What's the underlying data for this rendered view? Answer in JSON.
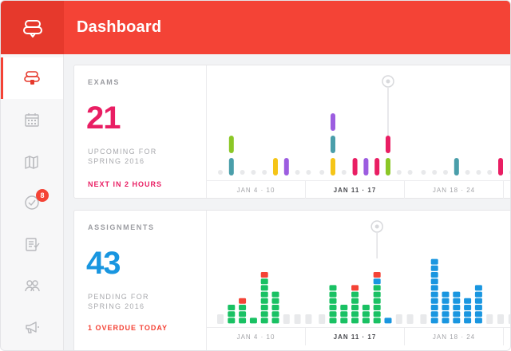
{
  "app": {
    "title": "Dashboard"
  },
  "sidebar": {
    "items": [
      {
        "name": "sidebar-item-home",
        "icon": "stacked-logo-icon",
        "active": true
      },
      {
        "name": "sidebar-item-calendar",
        "icon": "calendar-icon",
        "active": false
      },
      {
        "name": "sidebar-item-library",
        "icon": "books-icon",
        "active": false
      },
      {
        "name": "sidebar-item-tasks",
        "icon": "check-circle-icon",
        "active": false,
        "badge": "8"
      },
      {
        "name": "sidebar-item-assignments",
        "icon": "checklist-icon",
        "active": false
      },
      {
        "name": "sidebar-item-people",
        "icon": "people-icon",
        "active": false
      },
      {
        "name": "sidebar-item-announcements",
        "icon": "megaphone-icon",
        "active": false
      }
    ]
  },
  "exams": {
    "label": "EXAMS",
    "count": "21",
    "subtitle": "UPCOMING FOR SPRING 2016",
    "link": "NEXT IN 2 HOURS",
    "accent": "#e91e63"
  },
  "assignments": {
    "label": "ASSIGNMENTS",
    "count": "43",
    "subtitle": "PENDING FOR SPRING 2016",
    "link": "1 OVERDUE TODAY",
    "accent": "#1996e0",
    "link_color": "#f44336"
  },
  "weeks": [
    "JAN 4 · 10",
    "JAN 11 · 17",
    "JAN 18 · 24"
  ],
  "current_week_index": 1,
  "colors": {
    "brand": "#f44336",
    "teal": "#4a9eaa",
    "lime": "#8bc726",
    "yellow": "#f5c518",
    "purple": "#9c5de0",
    "pink": "#e91e63",
    "green": "#19c163",
    "red": "#f44336",
    "blue": "#1996e0",
    "empty": "#e8e9eb"
  },
  "exam_chart": {
    "segments_per_day": [
      [],
      [
        "teal",
        "lime"
      ],
      [],
      [],
      [],
      [
        "yellow"
      ],
      [
        "purple"
      ],
      [],
      [],
      [],
      [
        "yellow",
        "teal",
        "purple"
      ],
      [],
      [
        "pink"
      ],
      [
        "purple"
      ],
      [
        "pink"
      ],
      [
        "lime",
        "pink"
      ],
      [],
      [],
      [],
      [],
      [],
      [
        "teal"
      ],
      [],
      [],
      [],
      [
        "pink"
      ],
      []
    ]
  },
  "assignment_chart": {
    "segments_per_day": [
      [],
      [
        {
          "c": "green",
          "n": 3
        }
      ],
      [
        {
          "c": "green",
          "n": 3
        },
        {
          "c": "red",
          "n": 1
        }
      ],
      [
        {
          "c": "green",
          "n": 1
        }
      ],
      [
        {
          "c": "green",
          "n": 7
        },
        {
          "c": "red",
          "n": 1
        }
      ],
      [
        {
          "c": "green",
          "n": 5
        }
      ],
      [],
      [],
      [],
      [],
      [
        {
          "c": "green",
          "n": 6
        }
      ],
      [
        {
          "c": "green",
          "n": 3
        }
      ],
      [
        {
          "c": "green",
          "n": 5
        },
        {
          "c": "red",
          "n": 1
        }
      ],
      [
        {
          "c": "green",
          "n": 3
        }
      ],
      [
        {
          "c": "green",
          "n": 6
        },
        {
          "c": "blue",
          "n": 1
        },
        {
          "c": "red",
          "n": 1
        }
      ],
      [
        {
          "c": "blue",
          "n": 1
        }
      ],
      [],
      [],
      [],
      [
        {
          "c": "blue",
          "n": 10
        }
      ],
      [
        {
          "c": "blue",
          "n": 5
        }
      ],
      [
        {
          "c": "blue",
          "n": 5
        }
      ],
      [
        {
          "c": "blue",
          "n": 4
        }
      ],
      [
        {
          "c": "blue",
          "n": 6
        }
      ],
      [],
      [],
      []
    ]
  }
}
